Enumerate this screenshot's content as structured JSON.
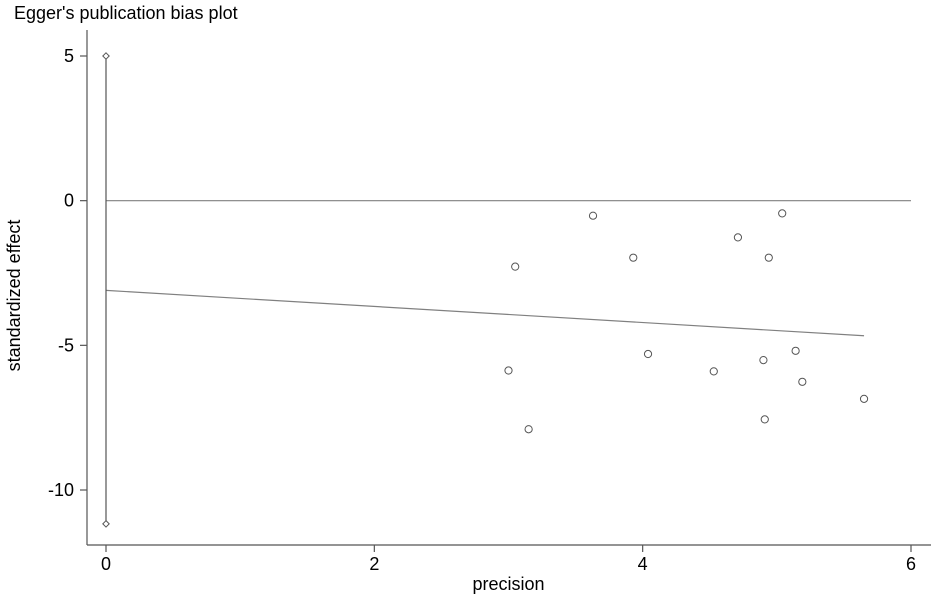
{
  "chart_data": {
    "type": "scatter",
    "title": "Egger's publication bias plot",
    "xlabel": "precision",
    "ylabel": "standardized effect",
    "xlim": [
      0,
      6
    ],
    "ylim": [
      -11.5,
      5.5
    ],
    "x_ticks": [
      0,
      2,
      4,
      6
    ],
    "y_ticks": [
      5,
      0,
      -5,
      -10
    ],
    "grid": false,
    "legend": "none",
    "points": [
      {
        "x": 3.63,
        "y": -0.52
      },
      {
        "x": 5.04,
        "y": -0.44
      },
      {
        "x": 4.71,
        "y": -1.27
      },
      {
        "x": 3.93,
        "y": -1.97
      },
      {
        "x": 4.94,
        "y": -1.97
      },
      {
        "x": 3.05,
        "y": -2.28
      },
      {
        "x": 4.04,
        "y": -5.3
      },
      {
        "x": 5.14,
        "y": -5.19
      },
      {
        "x": 4.9,
        "y": -5.51
      },
      {
        "x": 3.0,
        "y": -5.87
      },
      {
        "x": 4.53,
        "y": -5.9
      },
      {
        "x": 5.19,
        "y": -6.26
      },
      {
        "x": 5.65,
        "y": -6.85
      },
      {
        "x": 4.91,
        "y": -7.56
      },
      {
        "x": 3.15,
        "y": -7.9
      }
    ],
    "reference_line": {
      "y": 0,
      "x_range": [
        0,
        6
      ]
    },
    "regression_line": {
      "x1": 0,
      "y1": -3.1,
      "x2": 5.65,
      "y2": -4.67
    },
    "intercept_interval": {
      "x": 0,
      "low": -11.17,
      "high": 5.0
    }
  },
  "colors": {
    "axis": "#555555",
    "line": "#808080",
    "marker": "#555555",
    "text": "#000000"
  }
}
